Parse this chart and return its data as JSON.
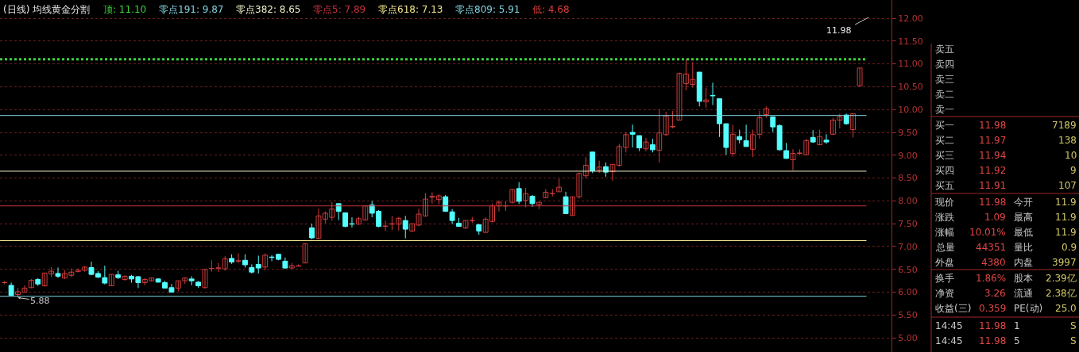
{
  "chart_data": [
    {
      "type": "candlestick",
      "title": "(日线) 均线黄金分割",
      "categories": [
        null,
        null,
        null,
        null,
        null,
        null,
        null,
        null,
        null,
        null,
        null,
        null,
        null,
        null,
        null,
        null,
        null,
        null,
        null,
        null,
        null,
        null,
        null,
        null,
        null,
        null,
        null,
        null,
        null,
        null,
        null,
        null,
        null,
        null,
        null,
        null,
        null,
        null,
        null,
        null,
        null,
        null,
        null,
        null,
        null,
        null,
        null,
        null,
        null,
        null,
        null,
        null,
        null,
        null,
        null,
        null,
        null,
        null,
        null,
        null,
        null,
        null,
        null,
        null,
        null,
        null,
        null,
        null,
        null,
        null,
        null,
        null,
        null,
        null,
        null,
        null,
        null,
        null,
        null,
        null,
        null,
        null,
        null,
        null,
        null,
        null,
        null,
        null,
        null,
        null,
        null,
        null,
        null,
        null,
        null,
        null,
        null,
        null,
        null,
        null,
        null,
        null,
        null,
        null,
        null,
        null,
        null,
        null,
        null,
        null,
        null,
        null,
        null,
        null,
        null,
        null,
        null,
        null,
        null,
        null,
        null,
        null,
        null,
        null,
        null,
        null,
        null,
        null,
        null
      ],
      "ohlc": [
        [
          6.21,
          6.25,
          6.17,
          6.21
        ],
        [
          6.15,
          6.21,
          5.91,
          5.93
        ],
        [
          5.95,
          6.09,
          5.88,
          6.01
        ],
        [
          6.0,
          6.15,
          5.99,
          6.09
        ],
        [
          6.1,
          6.29,
          6.09,
          6.26
        ],
        [
          6.28,
          6.31,
          6.14,
          6.18
        ],
        [
          6.14,
          6.42,
          6.12,
          6.42
        ],
        [
          6.4,
          6.55,
          6.33,
          6.46
        ],
        [
          6.41,
          6.54,
          6.31,
          6.35
        ],
        [
          6.31,
          6.48,
          6.29,
          6.41
        ],
        [
          6.37,
          6.52,
          6.33,
          6.44
        ],
        [
          6.45,
          6.52,
          6.44,
          6.48
        ],
        [
          6.48,
          6.57,
          6.45,
          6.55
        ],
        [
          6.54,
          6.67,
          6.37,
          6.39
        ],
        [
          6.41,
          6.46,
          6.31,
          6.33
        ],
        [
          6.32,
          6.58,
          6.17,
          6.2
        ],
        [
          6.14,
          6.39,
          6.14,
          6.39
        ],
        [
          6.38,
          6.47,
          6.29,
          6.32
        ],
        [
          6.28,
          6.37,
          6.25,
          6.35
        ],
        [
          6.35,
          6.38,
          6.21,
          6.29
        ],
        [
          6.34,
          6.35,
          6.09,
          6.21
        ],
        [
          6.21,
          6.31,
          6.15,
          6.28
        ],
        [
          6.25,
          6.32,
          6.23,
          6.31
        ],
        [
          6.29,
          6.31,
          6.21,
          6.22
        ],
        [
          6.21,
          6.25,
          6.08,
          6.09
        ],
        [
          6.1,
          6.18,
          5.99,
          6.0
        ],
        [
          6.09,
          6.25,
          6.02,
          6.25
        ],
        [
          6.25,
          6.32,
          6.18,
          6.31
        ],
        [
          6.29,
          6.35,
          6.15,
          6.25
        ],
        [
          6.22,
          6.24,
          6.1,
          6.14
        ],
        [
          6.1,
          6.5,
          6.08,
          6.5
        ],
        [
          6.52,
          6.7,
          6.45,
          6.52
        ],
        [
          6.53,
          6.64,
          6.44,
          6.53
        ],
        [
          6.51,
          6.79,
          6.47,
          6.73
        ],
        [
          6.74,
          6.83,
          6.62,
          6.66
        ],
        [
          6.68,
          6.85,
          6.64,
          6.69
        ],
        [
          6.7,
          6.83,
          6.54,
          6.6
        ],
        [
          6.54,
          6.61,
          6.41,
          6.44
        ],
        [
          6.61,
          6.8,
          6.41,
          6.53
        ],
        [
          6.55,
          6.85,
          6.48,
          6.81
        ],
        [
          6.77,
          6.81,
          6.68,
          6.76
        ],
        [
          6.83,
          6.84,
          6.7,
          6.72
        ],
        [
          6.68,
          6.76,
          6.51,
          6.53
        ],
        [
          6.53,
          6.64,
          6.51,
          6.58
        ],
        [
          6.57,
          6.61,
          6.57,
          6.58
        ],
        [
          6.64,
          7.07,
          6.64,
          7.06
        ],
        [
          7.41,
          7.5,
          7.16,
          7.19
        ],
        [
          7.18,
          7.83,
          7.16,
          7.67
        ],
        [
          7.6,
          7.77,
          7.51,
          7.73
        ],
        [
          7.64,
          7.97,
          7.57,
          7.82
        ],
        [
          7.94,
          7.94,
          7.58,
          7.77
        ],
        [
          7.74,
          7.74,
          7.42,
          7.44
        ],
        [
          7.5,
          7.64,
          7.42,
          7.49
        ],
        [
          7.49,
          7.65,
          7.48,
          7.61
        ],
        [
          7.58,
          7.9,
          7.57,
          7.89
        ],
        [
          7.91,
          8.0,
          7.64,
          7.73
        ],
        [
          7.77,
          7.8,
          7.42,
          7.44
        ],
        [
          7.44,
          7.57,
          7.34,
          7.45
        ],
        [
          7.49,
          7.67,
          7.36,
          7.5
        ],
        [
          7.49,
          7.65,
          7.35,
          7.62
        ],
        [
          7.57,
          7.67,
          7.18,
          7.38
        ],
        [
          7.34,
          7.51,
          7.32,
          7.5
        ],
        [
          7.47,
          7.83,
          7.45,
          7.71
        ],
        [
          7.67,
          8.17,
          7.65,
          8.04
        ],
        [
          8.08,
          8.19,
          7.94,
          8.1
        ],
        [
          8.03,
          8.15,
          7.92,
          8.11
        ],
        [
          8.09,
          8.13,
          7.76,
          7.77
        ],
        [
          7.76,
          7.82,
          7.49,
          7.57
        ],
        [
          7.51,
          7.63,
          7.44,
          7.44
        ],
        [
          7.41,
          7.57,
          7.38,
          7.57
        ],
        [
          7.57,
          7.65,
          7.52,
          7.57
        ],
        [
          7.48,
          7.49,
          7.26,
          7.34
        ],
        [
          7.31,
          7.64,
          7.31,
          7.6
        ],
        [
          7.55,
          7.94,
          7.53,
          7.89
        ],
        [
          7.89,
          8.01,
          7.77,
          7.97
        ],
        [
          7.89,
          7.99,
          7.78,
          7.89
        ],
        [
          7.97,
          8.26,
          7.94,
          8.25
        ],
        [
          8.27,
          8.41,
          7.93,
          7.99
        ],
        [
          8.01,
          8.28,
          7.86,
          8.16
        ],
        [
          8.1,
          8.13,
          7.87,
          7.94
        ],
        [
          7.92,
          7.97,
          7.82,
          7.97
        ],
        [
          8.07,
          8.26,
          8.06,
          8.19
        ],
        [
          8.16,
          8.26,
          8.1,
          8.16
        ],
        [
          8.2,
          8.48,
          8.2,
          8.3
        ],
        [
          8.09,
          8.2,
          7.71,
          7.72
        ],
        [
          7.68,
          8.09,
          7.68,
          8.09
        ],
        [
          8.09,
          8.62,
          8.05,
          8.6
        ],
        [
          8.55,
          8.96,
          8.49,
          8.78
        ],
        [
          9.07,
          9.07,
          8.61,
          8.66
        ],
        [
          8.67,
          8.88,
          8.61,
          8.74
        ],
        [
          8.75,
          8.84,
          8.53,
          8.63
        ],
        [
          8.64,
          8.8,
          8.44,
          8.8
        ],
        [
          8.78,
          9.25,
          8.75,
          9.19
        ],
        [
          9.17,
          9.51,
          9.06,
          9.45
        ],
        [
          9.5,
          9.67,
          9.17,
          9.46
        ],
        [
          9.43,
          9.43,
          9.09,
          9.16
        ],
        [
          9.14,
          9.38,
          9.09,
          9.29
        ],
        [
          9.23,
          9.36,
          9.06,
          9.12
        ],
        [
          9.11,
          10.0,
          8.84,
          9.49
        ],
        [
          9.45,
          9.95,
          9.42,
          9.86
        ],
        [
          9.62,
          9.97,
          9.59,
          9.63
        ],
        [
          9.77,
          10.81,
          9.77,
          10.79
        ],
        [
          10.57,
          11.1,
          10.42,
          10.78
        ],
        [
          10.55,
          11.04,
          10.48,
          10.66
        ],
        [
          10.82,
          10.82,
          10.07,
          10.18
        ],
        [
          10.17,
          10.48,
          10.04,
          10.21
        ],
        [
          10.31,
          10.59,
          10.1,
          10.3
        ],
        [
          10.24,
          10.24,
          9.4,
          9.69
        ],
        [
          9.69,
          9.69,
          9.01,
          9.17
        ],
        [
          9.04,
          9.67,
          8.97,
          9.46
        ],
        [
          9.41,
          9.56,
          9.26,
          9.34
        ],
        [
          9.32,
          9.67,
          9.19,
          9.19
        ],
        [
          9.13,
          9.56,
          8.96,
          9.45
        ],
        [
          9.46,
          9.97,
          9.36,
          9.82
        ],
        [
          9.89,
          10.07,
          9.82,
          10.02
        ],
        [
          9.84,
          9.84,
          9.51,
          9.62
        ],
        [
          9.65,
          9.68,
          9.1,
          9.12
        ],
        [
          9.1,
          9.27,
          8.92,
          8.93
        ],
        [
          8.9,
          9.13,
          8.67,
          9.04
        ],
        [
          9.04,
          9.13,
          9.0,
          9.05
        ],
        [
          9.01,
          9.36,
          9.01,
          9.32
        ],
        [
          9.39,
          9.55,
          9.27,
          9.29
        ],
        [
          9.23,
          9.56,
          9.22,
          9.41
        ],
        [
          9.33,
          9.46,
          9.25,
          9.29
        ],
        [
          9.46,
          9.82,
          9.45,
          9.77
        ],
        [
          9.77,
          9.91,
          9.59,
          9.84
        ],
        [
          9.88,
          9.91,
          9.67,
          9.69
        ],
        [
          9.56,
          9.91,
          9.39,
          9.91
        ],
        [
          10.52,
          10.91,
          10.52,
          10.91
        ]
      ],
      "colors": [
        "#d23c3c",
        "#54ffff",
        "#d23c3c",
        "#d23c3c",
        "#d23c3c",
        "#54ffff",
        "#d23c3c",
        "#d23c3c",
        "#54ffff",
        "#d23c3c",
        "#d23c3c",
        "#d23c3c",
        "#d23c3c",
        "#54ffff",
        "#54ffff",
        "#54ffff",
        "#d23c3c",
        "#54ffff",
        "#d23c3c",
        "#54ffff",
        "#54ffff",
        "#d23c3c",
        "#d23c3c",
        "#54ffff",
        "#54ffff",
        "#54ffff",
        "#d23c3c",
        "#d23c3c",
        "#54ffff",
        "#54ffff",
        "#d23c3c",
        "#d23c3c",
        "#d23c3c",
        "#d23c3c",
        "#54ffff",
        "#d23c3c",
        "#54ffff",
        "#54ffff",
        "#54ffff",
        "#d23c3c",
        "#54ffff",
        "#54ffff",
        "#54ffff",
        "#d23c3c",
        "#d23c3c",
        "#d23c3c",
        "#54ffff",
        "#d23c3c",
        "#d23c3c",
        "#d23c3c",
        "#54ffff",
        "#54ffff",
        "#54ffff",
        "#d23c3c",
        "#d23c3c",
        "#54ffff",
        "#54ffff",
        "#d23c3c",
        "#d23c3c",
        "#d23c3c",
        "#54ffff",
        "#d23c3c",
        "#d23c3c",
        "#d23c3c",
        "#d23c3c",
        "#d23c3c",
        "#54ffff",
        "#54ffff",
        "#54ffff",
        "#d23c3c",
        "#d23c3c",
        "#54ffff",
        "#d23c3c",
        "#d23c3c",
        "#d23c3c",
        "#d23c3c",
        "#d23c3c",
        "#54ffff",
        "#d23c3c",
        "#54ffff",
        "#d23c3c",
        "#d23c3c",
        "#d23c3c",
        "#d23c3c",
        "#54ffff",
        "#d23c3c",
        "#d23c3c",
        "#d23c3c",
        "#54ffff",
        "#d23c3c",
        "#54ffff",
        "#d23c3c",
        "#d23c3c",
        "#d23c3c",
        "#54ffff",
        "#54ffff",
        "#d23c3c",
        "#54ffff",
        "#d23c3c",
        "#d23c3c",
        "#d23c3c",
        "#d23c3c",
        "#d23c3c",
        "#d23c3c",
        "#54ffff",
        "#d23c3c",
        "#54ffff",
        "#54ffff",
        "#54ffff",
        "#d23c3c",
        "#54ffff",
        "#54ffff",
        "#d23c3c",
        "#d23c3c",
        "#d23c3c",
        "#54ffff",
        "#54ffff",
        "#54ffff",
        "#d23c3c",
        "#d23c3c",
        "#d23c3c",
        "#54ffff",
        "#d23c3c",
        "#54ffff",
        "#d23c3c",
        "#d23c3c",
        "#54ffff",
        "#d23c3c",
        "#d23c3c"
      ],
      "ylim": [
        4.69,
        12.4
      ],
      "yticks": [
        {
          "value": 5,
          "label": "5.00"
        },
        {
          "value": 5.5,
          "label": "5.50"
        },
        {
          "value": 6,
          "label": "6.00"
        },
        {
          "value": 6.5,
          "label": "6.50"
        },
        {
          "value": 7,
          "label": "7.00"
        },
        {
          "value": 7.5,
          "label": "7.50"
        },
        {
          "value": 8,
          "label": "8.00"
        },
        {
          "value": 8.5,
          "label": "8.50"
        },
        {
          "value": 9,
          "label": "9.00"
        },
        {
          "value": 9.5,
          "label": "9.50"
        },
        {
          "value": 10,
          "label": "10.00"
        },
        {
          "value": 10.5,
          "label": "10.50"
        },
        {
          "value": 11,
          "label": "11.00"
        },
        {
          "value": 11.5,
          "label": "11.50"
        },
        {
          "value": 12,
          "label": "12.00"
        }
      ],
      "grid": "y",
      "tick_labels": "y",
      "ref_lines": [
        {
          "axis": "y",
          "value": 11.1,
          "label": "顶: 11.10",
          "color": "#3cd23c",
          "line_style": "dotted"
        },
        {
          "axis": "y",
          "value": 9.87,
          "label": "零点191: 9.87",
          "color": "#7fd3e0",
          "line_style": "solid"
        },
        {
          "axis": "y",
          "value": 8.65,
          "label": "零点382: 8.65",
          "color": "#f0eec8",
          "line_style": "solid"
        },
        {
          "axis": "y",
          "value": 7.89,
          "label": "零点5: 7.89",
          "color": "#c8323c",
          "line_style": "solid"
        },
        {
          "axis": "y",
          "value": 7.13,
          "label": "零点618: 7.13",
          "color": "#f0e68c",
          "line_style": "solid"
        },
        {
          "axis": "y",
          "value": 5.91,
          "label": "零点809: 5.91",
          "color": "#7fd3e0",
          "line_style": "solid"
        }
      ],
      "annotations": [
        "低: 4.68",
        "11.98",
        {
          "text": "5.88",
          "y": 5.88
        }
      ]
    },
    {
      "type": "other",
      "annotations": [
        "卖五",
        "卖四",
        "卖三",
        "卖二",
        "卖一",
        "买一 11.98 7189",
        "买二 11.97 138",
        "买三 11.94 10",
        "买四 11.92 9",
        "买五 11.91 107",
        "现价 11.98 今开 11.9",
        "涨跌 1.09 最高 11.9",
        "涨幅 10.01% 最低 11.9",
        "总量 44351 量比 0.9",
        "外盘 4380 内盘 3997",
        "换手 1.86% 股本 2.39亿",
        "净资 3.26 流通 2.38亿",
        "收益(三) 0.359 PE(动) 25.0",
        "14:45 11.98 1 S",
        "14:45 11.98 5 S"
      ]
    }
  ]
}
